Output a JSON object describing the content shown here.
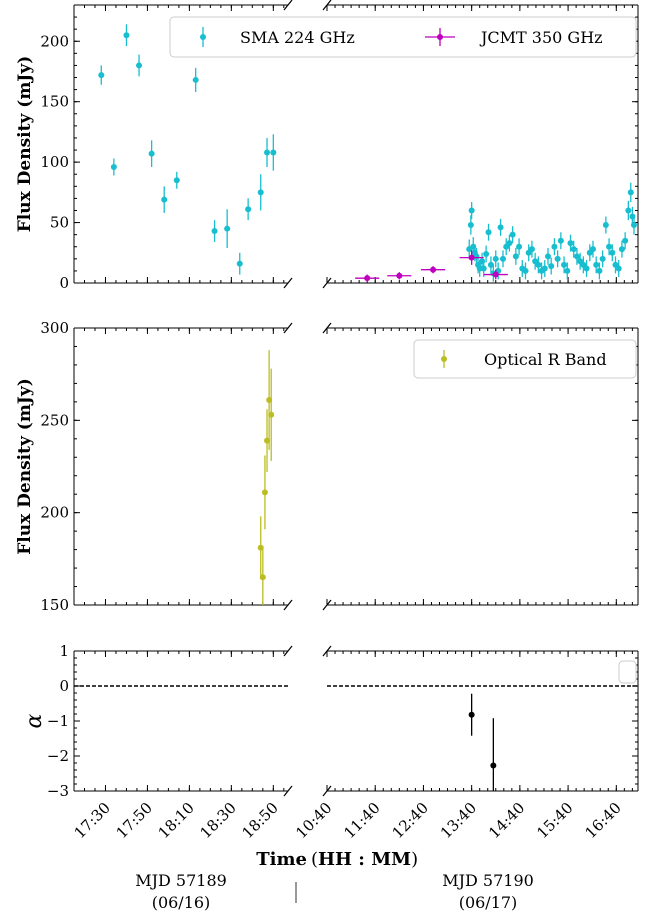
{
  "figure": {
    "x_axis_label_prefix": "Time",
    "x_axis_label_units": "HH : MM",
    "left_day_label": "MJD 57189",
    "left_day_date": "(06/16)",
    "right_day_label": "MJD 57190",
    "right_day_date": "(06/17)",
    "left_x_ticks": [
      "17:30",
      "17:50",
      "18:10",
      "18:30",
      "18:50"
    ],
    "right_x_ticks": [
      "10:40",
      "11:40",
      "12:40",
      "13:40",
      "14:40",
      "15:40",
      "16:40"
    ]
  },
  "chart_data": [
    {
      "type": "scatter",
      "panel": "top",
      "ylabel": "Flux Density (mJy)",
      "ylim": [
        0,
        230
      ],
      "y_ticks": [
        "0",
        "50",
        "100",
        "150",
        "200"
      ],
      "legend": {
        "position": "top",
        "entries": [
          "SMA 224 GHz",
          "JCMT 350 GHz"
        ]
      },
      "series": [
        {
          "name": "SMA 224 GHz",
          "color": "#17becf",
          "day": "57189",
          "x": [
            "17:28",
            "17:34",
            "17:40",
            "17:46",
            "17:52",
            "17:58",
            "18:04",
            "18:13",
            "18:16",
            "18:22",
            "18:28",
            "18:34",
            "18:38",
            "18:44",
            "18:47",
            "18:50"
          ],
          "y": [
            172,
            96,
            205,
            180,
            107,
            69,
            85,
            168,
            206,
            43,
            45,
            16,
            61,
            75,
            108,
            108
          ],
          "yerr": [
            8,
            7,
            9,
            9,
            11,
            11,
            7,
            10,
            10,
            9,
            16,
            9,
            9,
            15,
            12,
            15
          ]
        },
        {
          "name": "SMA 224 GHz",
          "color": "#17becf",
          "day": "57190",
          "x": [
            "13:37",
            "13:39",
            "13:40",
            "13:42",
            "13:44",
            "13:46",
            "13:48",
            "13:50",
            "13:53",
            "13:55",
            "13:58",
            "14:01",
            "14:04",
            "14:07",
            "14:10",
            "14:13",
            "14:16",
            "14:19",
            "14:23",
            "14:27",
            "14:31",
            "14:35",
            "14:39",
            "14:43",
            "14:47",
            "14:51",
            "14:55",
            "14:59",
            "15:03",
            "15:07",
            "15:11",
            "15:15",
            "15:19",
            "15:23",
            "15:27",
            "15:31",
            "15:35",
            "15:39",
            "15:43",
            "15:47",
            "15:51",
            "15:55",
            "15:59",
            "16:03",
            "16:07",
            "16:11",
            "16:15",
            "16:19",
            "16:23",
            "16:27",
            "16:31",
            "16:35",
            "16:39",
            "16:43",
            "16:47",
            "16:51",
            "16:55",
            "16:58",
            "17:00",
            "17:02"
          ],
          "y": [
            28,
            48,
            60,
            30,
            25,
            22,
            15,
            12,
            18,
            12,
            24,
            42,
            15,
            8,
            20,
            10,
            46,
            20,
            30,
            33,
            40,
            22,
            30,
            12,
            10,
            25,
            28,
            18,
            15,
            10,
            12,
            22,
            14,
            30,
            20,
            35,
            15,
            10,
            33,
            28,
            22,
            18,
            15,
            12,
            25,
            28,
            15,
            10,
            20,
            48,
            30,
            25,
            15,
            12,
            28,
            35,
            60,
            75,
            55,
            48
          ],
          "yerr": [
            8,
            8,
            7,
            8,
            7,
            7,
            7,
            7,
            7,
            7,
            7,
            7,
            7,
            7,
            7,
            7,
            7,
            7,
            7,
            7,
            7,
            7,
            7,
            7,
            7,
            7,
            7,
            7,
            7,
            7,
            7,
            7,
            7,
            7,
            7,
            7,
            7,
            7,
            7,
            7,
            7,
            7,
            7,
            7,
            7,
            7,
            7,
            7,
            7,
            7,
            7,
            7,
            7,
            7,
            7,
            7,
            8,
            8,
            8,
            8
          ]
        },
        {
          "name": "JCMT 350 GHz",
          "color": "#bf00bf",
          "day": "57190",
          "x": [
            "11:30",
            "12:10",
            "12:52",
            "13:40",
            "14:10"
          ],
          "y": [
            4,
            6,
            11,
            21,
            7
          ],
          "yerr": [
            3,
            3,
            3,
            6,
            4
          ],
          "xerr_min": [
            15,
            15,
            15,
            15,
            15
          ]
        }
      ]
    },
    {
      "type": "scatter",
      "panel": "middle",
      "ylabel": "Flux Density (mJy)",
      "ylim": [
        150,
        300
      ],
      "y_ticks": [
        "150",
        "200",
        "250",
        "300"
      ],
      "legend": {
        "position": "top-right",
        "entries": [
          "Optical R Band"
        ]
      },
      "series": [
        {
          "name": "Optical R Band",
          "color": "#bcbd22",
          "day": "57189",
          "x": [
            "18:44",
            "18:45",
            "18:46",
            "18:47",
            "18:48",
            "18:49"
          ],
          "y": [
            181,
            165,
            211,
            239,
            261,
            253
          ],
          "yerr": [
            17,
            17,
            20,
            17,
            27,
            25
          ]
        }
      ]
    },
    {
      "type": "scatter",
      "panel": "bottom",
      "ylabel": "α",
      "ylim": [
        -3,
        1
      ],
      "y_ticks": [
        "−3",
        "−2",
        "−1",
        "0",
        "1"
      ],
      "reference_line_y": 0,
      "legend": {
        "position": "top-right",
        "entries": []
      },
      "series": [
        {
          "name": "",
          "color": "#000000",
          "day": "57190",
          "x": [
            "13:40",
            "14:07"
          ],
          "y": [
            -0.82,
            -2.27
          ],
          "yerr": [
            0.6,
            1.35
          ]
        }
      ]
    }
  ]
}
